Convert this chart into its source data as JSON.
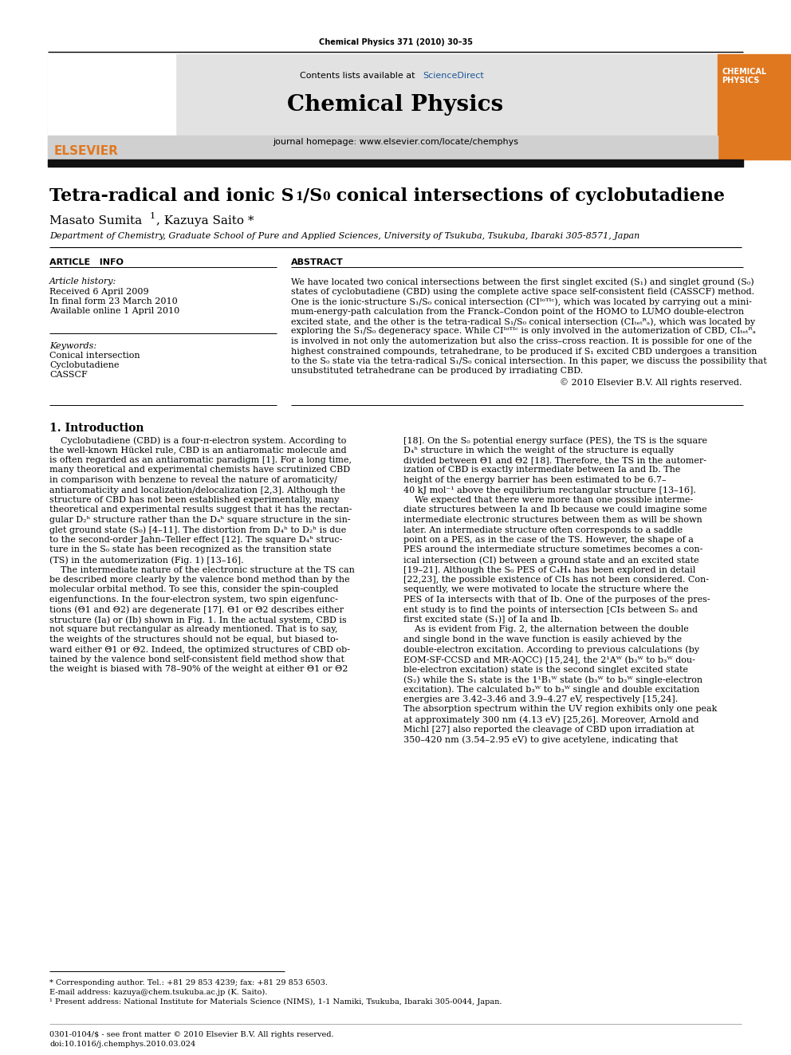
{
  "journal_ref": "Chemical Physics 371 (2010) 30–35",
  "contents_text": "Contents lists available at ",
  "sciencedirect_text": "ScienceDirect",
  "journal_name": "Chemical Physics",
  "homepage_text": "journal homepage: www.elsevier.com/locate/chemphys",
  "title_part1": "Tetra-radical and ionic S",
  "title_sub1": "1",
  "title_part2": "/S",
  "title_sub2": "0",
  "title_part3": " conical intersections of cyclobutadiene",
  "authors": "Masato Sumita",
  "author_sup": "1",
  "author2": ", Kazuya Saito *",
  "affiliation": "Department of Chemistry, Graduate School of Pure and Applied Sciences, University of Tsukuba, Tsukuba, Ibaraki 305-8571, Japan",
  "article_info_title": "ARTICLE   INFO",
  "abstract_title": "ABSTRACT",
  "article_history_label": "Article history:",
  "received": "Received 6 April 2009",
  "final_form": "In final form 23 March 2010",
  "available": "Available online 1 April 2010",
  "keywords_label": "Keywords:",
  "keyword1": "Conical intersection",
  "keyword2": "Cyclobutadiene",
  "keyword3": "CASSCF",
  "copyright": "© 2010 Elsevier B.V. All rights reserved.",
  "section1_title": "1. Introduction",
  "footnote1": "* Corresponding author. Tel.: +81 29 853 4239; fax: +81 29 853 6503.",
  "footnote2": "E-mail address: kazuya@chem.tsukuba.ac.jp (K. Saito).",
  "footnote3": "¹ Present address: National Institute for Materials Science (NIMS), 1-1 Namiki, Tsukuba, Ibaraki 305-0044, Japan.",
  "bottom_line1": "0301-0104/$ - see front matter © 2010 Elsevier B.V. All rights reserved.",
  "bottom_line2": "doi:10.1016/j.chemphys.2010.03.024",
  "bg_color": "#ffffff",
  "header_bg": "#e0e0e0",
  "dark_bar_color": "#111111",
  "orange_color": "#e07820",
  "blue_link_color": "#1a5599",
  "elsevier_orange": "#e07820",
  "abstract_lines": [
    "We have located two conical intersections between the first singlet excited (S₁) and singlet ground (S₀)",
    "states of cyclobutadiene (CBD) using the complete active space self-consistent field (CASSCF) method.",
    "One is the ionic-structure S₁/S₀ conical intersection (CIᴵᵒᵀᴵᶜ), which was located by carrying out a mini-",
    "mum-energy-path calculation from the Franck–Condon point of the HOMO to LUMO double-electron",
    "excited state, and the other is the tetra-radical S₁/S₀ conical intersection (CIₜₑₜᴿₐ), which was located by",
    "exploring the S₁/S₀ degeneracy space. While CIᴵᵒᵀᴵᶜ is only involved in the automerization of CBD, CIₜₑₜᴿₐ",
    "is involved in not only the automerization but also the criss–cross reaction. It is possible for one of the",
    "highest constrained compounds, tetrahedrane, to be produced if S₁ excited CBD undergoes a transition",
    "to the S₀ state via the tetra-radical S₁/S₀ conical intersection. In this paper, we discuss the possibility that",
    "unsubstituted tetrahedrane can be produced by irradiating CBD."
  ],
  "intro_col1_lines": [
    "    Cyclobutadiene (CBD) is a four-π-electron system. According to",
    "the well-known Hückel rule, CBD is an antiaromatic molecule and",
    "is often regarded as an antiaromatic paradigm [1]. For a long time,",
    "many theoretical and experimental chemists have scrutinized CBD",
    "in comparison with benzene to reveal the nature of aromaticity/",
    "antiaromaticity and localization/delocalization [2,3]. Although the",
    "structure of CBD has not been established experimentally, many",
    "theoretical and experimental results suggest that it has the rectan-",
    "gular D₂ʰ structure rather than the D₄ʰ square structure in the sin-",
    "glet ground state (S₀) [4–11]. The distortion from D₄ʰ to D₂ʰ is due",
    "to the second-order Jahn–Teller effect [12]. The square D₄ʰ struc-",
    "ture in the S₀ state has been recognized as the transition state",
    "(TS) in the automerization (Fig. 1) [13–16].",
    "    The intermediate nature of the electronic structure at the TS can",
    "be described more clearly by the valence bond method than by the",
    "molecular orbital method. To see this, consider the spin-coupled",
    "eigenfunctions. In the four-electron system, two spin eigenfunc-",
    "tions (Θ1 and Θ2) are degenerate [17]. Θ1 or Θ2 describes either",
    "structure (Ia) or (Ib) shown in Fig. 1. In the actual system, CBD is",
    "not square but rectangular as already mentioned. That is to say,",
    "the weights of the structures should not be equal, but biased to-",
    "ward either Θ1 or Θ2. Indeed, the optimized structures of CBD ob-",
    "tained by the valence bond self-consistent field method show that",
    "the weight is biased with 78–90% of the weight at either Θ1 or Θ2"
  ],
  "intro_col2_lines": [
    "[18]. On the S₀ potential energy surface (PES), the TS is the square",
    "D₄ʰ structure in which the weight of the structure is equally",
    "divided between Θ1 and Θ2 [18]. Therefore, the TS in the automer-",
    "ization of CBD is exactly intermediate between Ia and Ib. The",
    "height of the energy barrier has been estimated to be 6.7–",
    "40 kJ mol⁻¹ above the equilibrium rectangular structure [13–16].",
    "    We expected that there were more than one possible interme-",
    "diate structures between Ia and Ib because we could imagine some",
    "intermediate electronic structures between them as will be shown",
    "later. An intermediate structure often corresponds to a saddle",
    "point on a PES, as in the case of the TS. However, the shape of a",
    "PES around the intermediate structure sometimes becomes a con-",
    "ical intersection (CI) between a ground state and an excited state",
    "[19–21]. Although the S₀ PES of C₄H₄ has been explored in detail",
    "[22,23], the possible existence of CIs has not been considered. Con-",
    "sequently, we were motivated to locate the structure where the",
    "PES of Ia intersects with that of Ib. One of the purposes of the pres-",
    "ent study is to find the points of intersection [CIs between S₀ and",
    "first excited state (S₁)] of Ia and Ib.",
    "    As is evident from Fig. 2, the alternation between the double",
    "and single bond in the wave function is easily achieved by the",
    "double-electron excitation. According to previous calculations (by",
    "EOM-SF-CCSD and MR-AQCC) [15,24], the 2¹Aᵂ (b₃ᵂ to b₃ᵂ dou-",
    "ble-electron excitation) state is the second singlet excited state",
    "(S₂) while the S₁ state is the 1¹B₁ᵂ state (b₃ᵂ to b₃ᵂ single-electron",
    "excitation). The calculated b₃ᵂ to b₃ᵂ single and double excitation",
    "energies are 3.42–3.46 and 3.9–4.27 eV, respectively [15,24].",
    "The absorption spectrum within the UV region exhibits only one peak",
    "at approximately 300 nm (4.13 eV) [25,26]. Moreover, Arnold and",
    "Michl [27] also reported the cleavage of CBD upon irradiation at",
    "350–420 nm (3.54–2.95 eV) to give acetylene, indicating that"
  ]
}
